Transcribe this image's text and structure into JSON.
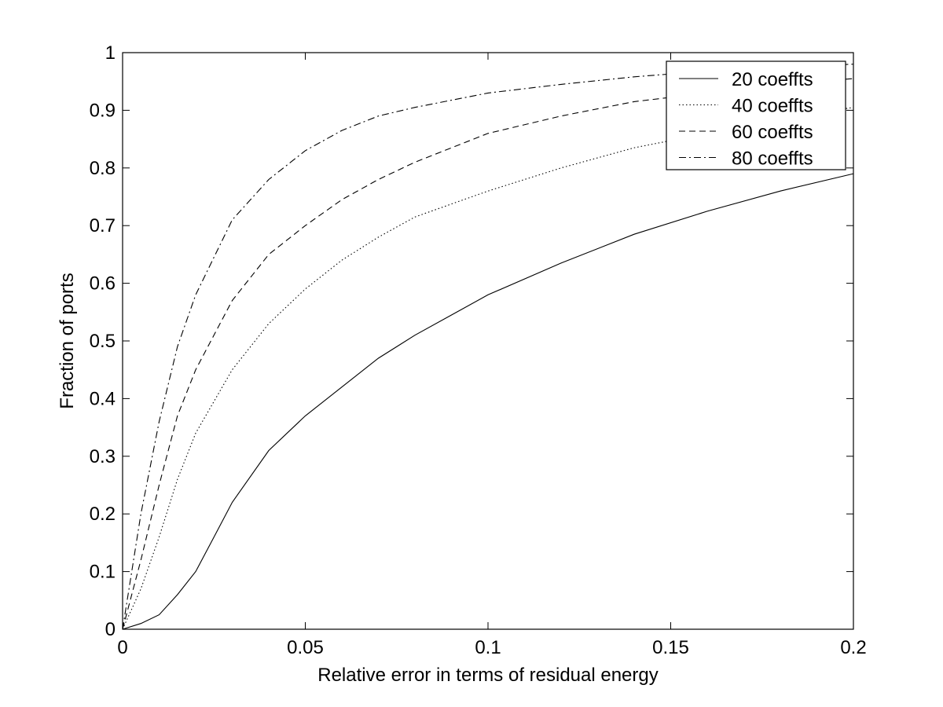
{
  "chart_data": {
    "type": "line",
    "title": "",
    "xlabel": "Relative error in terms of residual energy",
    "ylabel": "Fraction of ports",
    "xlim": [
      0,
      0.2
    ],
    "ylim": [
      0,
      1
    ],
    "xticks": [
      "0",
      "0.05",
      "0.1",
      "0.15",
      "0.2"
    ],
    "xtick_values": [
      0,
      0.05,
      0.1,
      0.15,
      0.2
    ],
    "yticks": [
      "0",
      "0.1",
      "0.2",
      "0.3",
      "0.4",
      "0.5",
      "0.6",
      "0.7",
      "0.8",
      "0.9",
      "1"
    ],
    "ytick_values": [
      0,
      0.1,
      0.2,
      0.3,
      0.4,
      0.5,
      0.6,
      0.7,
      0.8,
      0.9,
      1
    ],
    "grid": false,
    "legend_position": "top-right",
    "series": [
      {
        "name": "20 coeffts",
        "style": "solid",
        "x": [
          0,
          0.005,
          0.01,
          0.015,
          0.02,
          0.025,
          0.03,
          0.04,
          0.05,
          0.06,
          0.07,
          0.08,
          0.09,
          0.1,
          0.12,
          0.14,
          0.16,
          0.18,
          0.2
        ],
        "y": [
          0,
          0.01,
          0.025,
          0.06,
          0.1,
          0.16,
          0.22,
          0.31,
          0.37,
          0.42,
          0.47,
          0.51,
          0.545,
          0.58,
          0.635,
          0.685,
          0.725,
          0.76,
          0.79
        ]
      },
      {
        "name": "40 coeffts",
        "style": "dotted",
        "x": [
          0,
          0.005,
          0.01,
          0.015,
          0.02,
          0.03,
          0.04,
          0.05,
          0.06,
          0.07,
          0.08,
          0.1,
          0.12,
          0.14,
          0.16,
          0.18,
          0.2
        ],
        "y": [
          0,
          0.07,
          0.16,
          0.26,
          0.34,
          0.45,
          0.53,
          0.59,
          0.64,
          0.68,
          0.715,
          0.76,
          0.8,
          0.835,
          0.86,
          0.885,
          0.905
        ]
      },
      {
        "name": "60 coeffts",
        "style": "dashed",
        "x": [
          0,
          0.005,
          0.01,
          0.015,
          0.02,
          0.03,
          0.04,
          0.05,
          0.06,
          0.07,
          0.08,
          0.1,
          0.12,
          0.14,
          0.16,
          0.18,
          0.2
        ],
        "y": [
          0,
          0.12,
          0.25,
          0.37,
          0.45,
          0.57,
          0.65,
          0.7,
          0.745,
          0.78,
          0.81,
          0.86,
          0.89,
          0.915,
          0.93,
          0.945,
          0.955
        ]
      },
      {
        "name": "80 coeffts",
        "style": "dashdot",
        "x": [
          0,
          0.005,
          0.01,
          0.015,
          0.02,
          0.03,
          0.04,
          0.05,
          0.06,
          0.07,
          0.08,
          0.1,
          0.12,
          0.14,
          0.16,
          0.18,
          0.2
        ],
        "y": [
          0,
          0.2,
          0.36,
          0.49,
          0.58,
          0.71,
          0.78,
          0.83,
          0.865,
          0.89,
          0.905,
          0.93,
          0.945,
          0.958,
          0.968,
          0.975,
          0.98
        ]
      }
    ]
  }
}
